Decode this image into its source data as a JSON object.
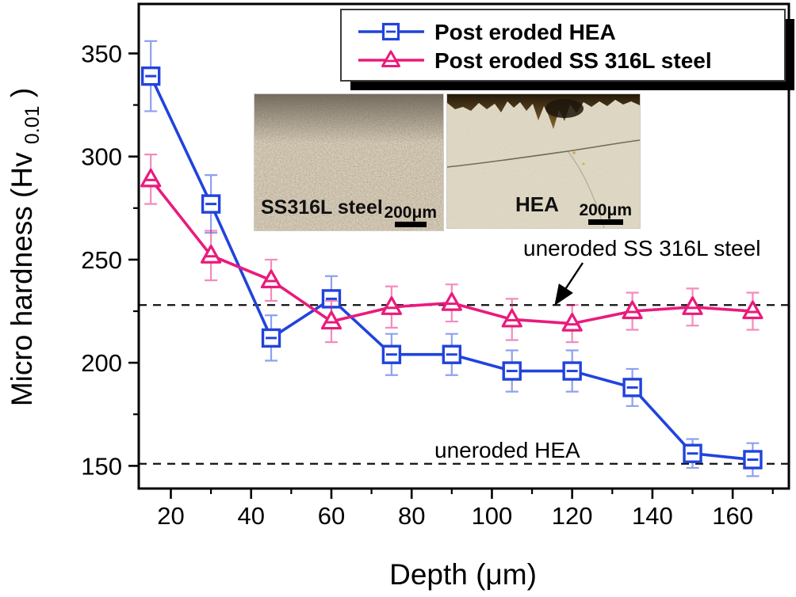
{
  "figure": {
    "background": "#ffffff"
  },
  "chart_data": {
    "type": "line",
    "title": "",
    "x": [
      15,
      30,
      45,
      60,
      75,
      90,
      105,
      120,
      135,
      150,
      165
    ],
    "series": [
      {
        "name": "Post eroded HEA",
        "color": "#2143dc",
        "marker": "square",
        "values": [
          339,
          277,
          212,
          231,
          204,
          204,
          196,
          196,
          188,
          156,
          153
        ],
        "errors": [
          17,
          14,
          11,
          11,
          10,
          10,
          10,
          10,
          9,
          7,
          8
        ]
      },
      {
        "name": "Post eroded SS 316L steel",
        "color": "#ea1a7c",
        "marker": "triangle",
        "values": [
          289,
          252,
          240,
          220,
          227,
          229,
          221,
          219,
          225,
          227,
          225
        ],
        "errors": [
          12,
          12,
          10,
          10,
          10,
          9,
          10,
          9,
          9,
          9,
          9
        ]
      }
    ],
    "reference_lines": [
      {
        "label": "uneroded SS 316L steel",
        "value": 228
      },
      {
        "label": "uneroded HEA",
        "value": 151
      }
    ],
    "xlabel": "Depth (μm)",
    "ylabel": "Micro hardness (Hv0.01)",
    "ylabel_parts": {
      "main": "Micro hardness (Hv",
      "sub": "0.01",
      "close": ")"
    },
    "xlim": [
      12,
      174
    ],
    "ylim": [
      139,
      374
    ],
    "xticks": [
      20,
      40,
      60,
      80,
      100,
      120,
      140,
      160
    ],
    "yticks": [
      150,
      200,
      250,
      300,
      350
    ],
    "x_minor_step": 10,
    "y_minor_step": 25,
    "grid": false,
    "legend_position": "top-right",
    "axis_color": "#000000",
    "dashed_line_color": "#111111"
  },
  "insets": [
    {
      "label": "SS316L steel",
      "scale_label": "200μm"
    },
    {
      "label": "HEA",
      "scale_label": "200μm"
    }
  ]
}
